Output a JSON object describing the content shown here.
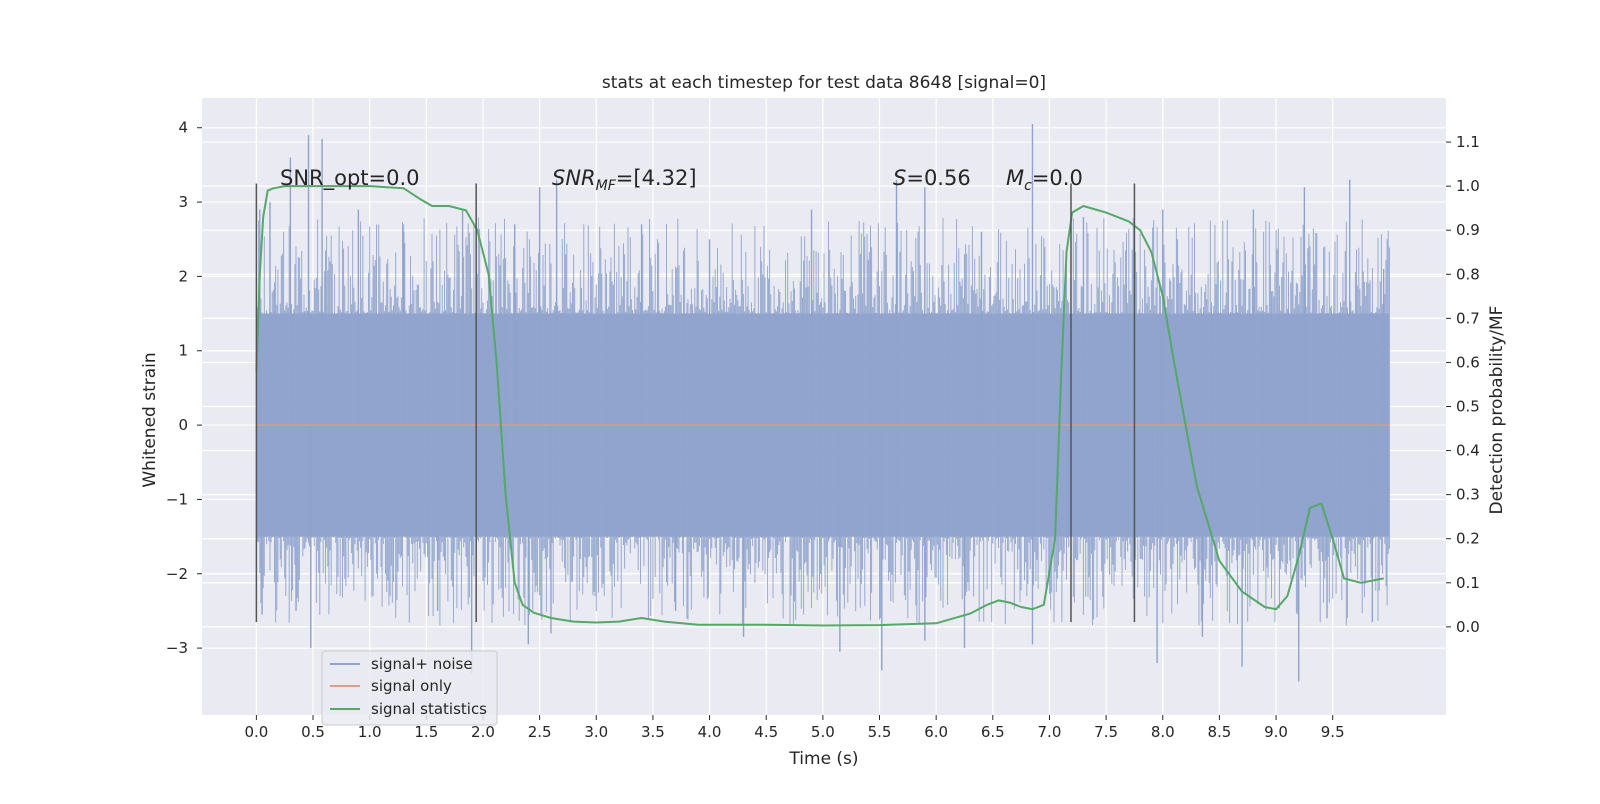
{
  "chart_data": {
    "type": "line",
    "title": "stats at each timestep for test data 8648 [signal=0]",
    "xlabel": "Time (s)",
    "ylabel_left": "Whitened strain",
    "ylabel_right": "Detection probability/MF",
    "xlim": [
      -0.48,
      10.5
    ],
    "ylim_left": [
      -3.9,
      4.4
    ],
    "ylim_right": [
      -0.2,
      1.2
    ],
    "x_ticks": [
      "0.0",
      "0.5",
      "1.0",
      "1.5",
      "2.0",
      "2.5",
      "3.0",
      "3.5",
      "4.0",
      "4.5",
      "5.0",
      "5.5",
      "6.0",
      "6.5",
      "7.0",
      "7.5",
      "8.0",
      "8.5",
      "9.0",
      "9.5"
    ],
    "y_ticks_left": [
      "4",
      "3",
      "2",
      "1",
      "0",
      "−1",
      "−2",
      "−3"
    ],
    "y_ticks_right": [
      "1.1",
      "1.0",
      "0.9",
      "0.8",
      "0.7",
      "0.6",
      "0.5",
      "0.4",
      "0.3",
      "0.2",
      "0.1",
      "0.0"
    ],
    "grid": true,
    "legend_position": "lower-left",
    "annotations": {
      "snr_opt": "SNR_opt=0.0",
      "snr_mf_main": "SNR",
      "snr_mf_sub": "MF",
      "snr_mf_value": "=[4.32]",
      "s_letter": "S",
      "s_value": "=0.56",
      "mc_main": "M",
      "mc_sub": "c",
      "mc_value": "=0.0"
    },
    "vertical_markers_x": [
      0.0,
      1.94,
      7.19,
      7.75
    ],
    "vertical_markers_range": [
      -2.65,
      3.25
    ],
    "noise_envelope": {
      "core_min": -1.5,
      "core_max": 1.5,
      "x_start": 0.0,
      "x_end": 10.0
    },
    "noise_spikes": [
      {
        "x": 0.03,
        "y": 2.9
      },
      {
        "x": 0.12,
        "y": 3.0
      },
      {
        "x": 0.3,
        "y": 3.6
      },
      {
        "x": 0.46,
        "y": 3.9
      },
      {
        "x": 0.58,
        "y": 3.85
      },
      {
        "x": 0.9,
        "y": 2.9
      },
      {
        "x": 1.3,
        "y": 2.6
      },
      {
        "x": 1.82,
        "y": 2.9
      },
      {
        "x": 2.28,
        "y": 2.7
      },
      {
        "x": 2.5,
        "y": 3.2
      },
      {
        "x": 2.65,
        "y": 3.3
      },
      {
        "x": 3.4,
        "y": 2.7
      },
      {
        "x": 4.0,
        "y": 2.5
      },
      {
        "x": 4.9,
        "y": 2.9
      },
      {
        "x": 5.65,
        "y": 3.3
      },
      {
        "x": 5.9,
        "y": 3.2
      },
      {
        "x": 6.4,
        "y": 2.6
      },
      {
        "x": 6.85,
        "y": 4.05
      },
      {
        "x": 7.3,
        "y": 2.8
      },
      {
        "x": 8.0,
        "y": 2.9
      },
      {
        "x": 8.8,
        "y": 2.9
      },
      {
        "x": 9.25,
        "y": 3.2
      },
      {
        "x": 9.65,
        "y": 3.3
      },
      {
        "x": 9.95,
        "y": 2.1
      },
      {
        "x": 0.05,
        "y": -2.55
      },
      {
        "x": 0.35,
        "y": -2.5
      },
      {
        "x": 0.48,
        "y": -3.0
      },
      {
        "x": 1.6,
        "y": -2.5
      },
      {
        "x": 1.9,
        "y": -3.35
      },
      {
        "x": 2.4,
        "y": -2.95
      },
      {
        "x": 2.6,
        "y": -2.8
      },
      {
        "x": 3.7,
        "y": -2.5
      },
      {
        "x": 4.3,
        "y": -2.85
      },
      {
        "x": 5.15,
        "y": -3.05
      },
      {
        "x": 5.52,
        "y": -3.3
      },
      {
        "x": 5.9,
        "y": -2.9
      },
      {
        "x": 6.25,
        "y": -3.0
      },
      {
        "x": 6.85,
        "y": -2.95
      },
      {
        "x": 7.95,
        "y": -3.2
      },
      {
        "x": 8.35,
        "y": -2.85
      },
      {
        "x": 8.7,
        "y": -3.25
      },
      {
        "x": 9.2,
        "y": -3.45
      },
      {
        "x": 9.45,
        "y": -2.6
      },
      {
        "x": 9.85,
        "y": -2.65
      }
    ],
    "series": [
      {
        "name": "signal+ noise",
        "color": "#8fa3cc",
        "axis": "left"
      },
      {
        "name": "signal only",
        "color": "#dd9d86",
        "axis": "left",
        "x": [
          0.0,
          10.0
        ],
        "y": [
          0.0,
          0.0
        ]
      },
      {
        "name": "signal statistics",
        "color": "#55a868",
        "axis": "right",
        "x": [
          0.0,
          0.03,
          0.06,
          0.1,
          0.15,
          0.25,
          0.5,
          1.0,
          1.3,
          1.45,
          1.55,
          1.7,
          1.85,
          1.95,
          2.05,
          2.12,
          2.2,
          2.28,
          2.35,
          2.45,
          2.6,
          2.8,
          3.0,
          3.2,
          3.4,
          3.6,
          3.9,
          4.2,
          4.5,
          5.0,
          5.5,
          6.0,
          6.3,
          6.45,
          6.55,
          6.65,
          6.75,
          6.85,
          6.95,
          7.05,
          7.1,
          7.15,
          7.2,
          7.3,
          7.5,
          7.7,
          7.8,
          7.9,
          8.0,
          8.1,
          8.3,
          8.5,
          8.7,
          8.9,
          9.0,
          9.1,
          9.2,
          9.3,
          9.4,
          9.5,
          9.6,
          9.75,
          9.95
        ],
        "y": [
          0.58,
          0.8,
          0.93,
          0.99,
          0.995,
          1.0,
          1.0,
          1.0,
          0.995,
          0.97,
          0.955,
          0.955,
          0.945,
          0.9,
          0.8,
          0.6,
          0.3,
          0.1,
          0.05,
          0.032,
          0.02,
          0.012,
          0.01,
          0.012,
          0.02,
          0.012,
          0.005,
          0.005,
          0.005,
          0.003,
          0.004,
          0.008,
          0.03,
          0.05,
          0.06,
          0.055,
          0.045,
          0.04,
          0.05,
          0.2,
          0.55,
          0.85,
          0.94,
          0.955,
          0.94,
          0.92,
          0.9,
          0.85,
          0.75,
          0.6,
          0.32,
          0.15,
          0.08,
          0.045,
          0.04,
          0.07,
          0.16,
          0.27,
          0.28,
          0.2,
          0.11,
          0.1,
          0.11
        ]
      }
    ]
  }
}
